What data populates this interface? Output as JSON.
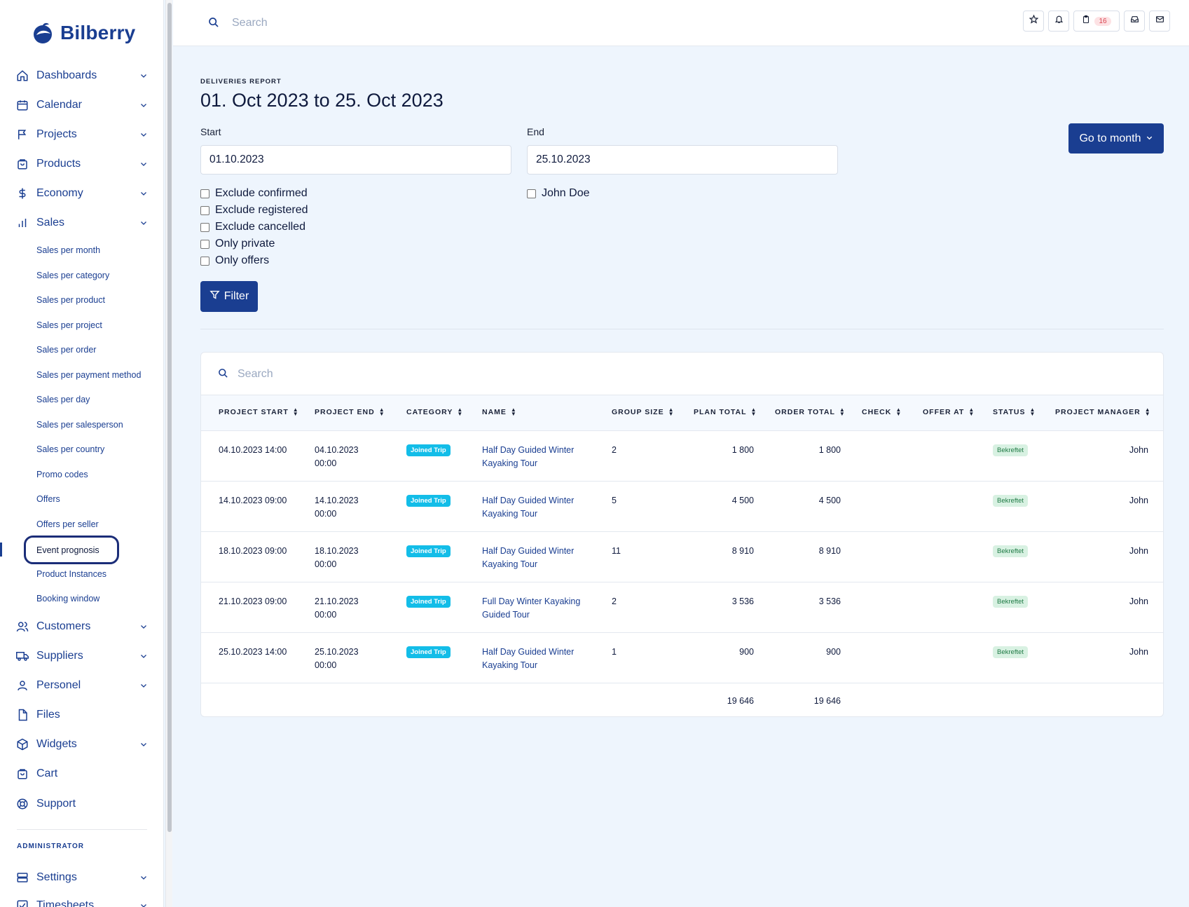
{
  "brand": {
    "name": "Bilberry"
  },
  "sidebar": {
    "items": [
      {
        "label": "Dashboards",
        "icon": "home-icon"
      },
      {
        "label": "Calendar",
        "icon": "calendar-icon"
      },
      {
        "label": "Projects",
        "icon": "flag-icon"
      },
      {
        "label": "Products",
        "icon": "bag-icon"
      },
      {
        "label": "Economy",
        "icon": "dollar-icon"
      },
      {
        "label": "Sales",
        "icon": "bar-chart-icon"
      }
    ],
    "sales_sub": [
      "Sales per month",
      "Sales per category",
      "Sales per product",
      "Sales per project",
      "Sales per order",
      "Sales per payment method",
      "Sales per day",
      "Sales per salesperson",
      "Sales per country",
      "Promo codes",
      "Offers",
      "Offers per seller",
      "Event prognosis",
      "Product Instances",
      "Booking window"
    ],
    "active_sub": "Event prognosis",
    "items_after": [
      {
        "label": "Customers",
        "icon": "users-icon",
        "chevron": true
      },
      {
        "label": "Suppliers",
        "icon": "truck-icon",
        "chevron": true
      },
      {
        "label": "Personel",
        "icon": "user-icon",
        "chevron": true
      },
      {
        "label": "Files",
        "icon": "file-icon",
        "chevron": false
      },
      {
        "label": "Widgets",
        "icon": "cube-icon",
        "chevron": true
      },
      {
        "label": "Cart",
        "icon": "cart-icon",
        "chevron": false
      },
      {
        "label": "Support",
        "icon": "lifebuoy-icon",
        "chevron": false
      }
    ],
    "admin_title": "ADMINISTRATOR",
    "admin_items": [
      {
        "label": "Settings",
        "icon": "server-icon"
      },
      {
        "label": "Timesheets",
        "icon": "check-square-icon"
      }
    ]
  },
  "topbar": {
    "search_placeholder": "Search",
    "cart_count": "16"
  },
  "report": {
    "kicker": "DELIVERIES REPORT",
    "title": "01. Oct 2023 to 25. Oct 2023",
    "start_label": "Start",
    "start_value": "01.10.2023",
    "end_label": "End",
    "end_value": "25.10.2023",
    "checkboxes": [
      "Exclude confirmed",
      "Exclude registered",
      "Exclude cancelled",
      "Only private",
      "Only offers"
    ],
    "person_checkbox": "John Doe",
    "filter_label": "Filter",
    "goto_label": "Go to month"
  },
  "table": {
    "search_placeholder": "Search",
    "columns": [
      "PROJECT START",
      "PROJECT END",
      "CATEGORY",
      "NAME",
      "GROUP SIZE",
      "PLAN TOTAL",
      "ORDER TOTAL",
      "CHECK",
      "OFFER AT",
      "STATUS",
      "PROJECT MANAGER"
    ],
    "rows": [
      {
        "start": "04.10.2023 14:00",
        "end_date": "04.10.2023",
        "end_time": "00:00",
        "category": "Joined Trip",
        "name_1": "Half Day Guided Winter",
        "name_2": "Kayaking Tour",
        "group": "2",
        "plan": "1 800",
        "order": "1 800",
        "status": "Bekreftet",
        "manager": "John"
      },
      {
        "start": "14.10.2023 09:00",
        "end_date": "14.10.2023",
        "end_time": "00:00",
        "category": "Joined Trip",
        "name_1": "Half Day Guided Winter",
        "name_2": "Kayaking Tour",
        "group": "5",
        "plan": "4 500",
        "order": "4 500",
        "status": "Bekreftet",
        "manager": "John"
      },
      {
        "start": "18.10.2023 09:00",
        "end_date": "18.10.2023",
        "end_time": "00:00",
        "category": "Joined Trip",
        "name_1": "Half Day Guided Winter",
        "name_2": "Kayaking Tour",
        "group": "11",
        "plan": "8 910",
        "order": "8 910",
        "status": "Bekreftet",
        "manager": "John"
      },
      {
        "start": "21.10.2023 09:00",
        "end_date": "21.10.2023",
        "end_time": "00:00",
        "category": "Joined Trip",
        "name_1": "Full Day Winter Kayaking",
        "name_2": "Guided Tour",
        "group": "2",
        "plan": "3 536",
        "order": "3 536",
        "status": "Bekreftet",
        "manager": "John"
      },
      {
        "start": "25.10.2023 14:00",
        "end_date": "25.10.2023",
        "end_time": "00:00",
        "category": "Joined Trip",
        "name_1": "Half Day Guided Winter",
        "name_2": "Kayaking Tour",
        "group": "1",
        "plan": "900",
        "order": "900",
        "status": "Bekreftet",
        "manager": "John"
      }
    ],
    "totals": {
      "plan": "19 646",
      "order": "19 646"
    }
  },
  "colors": {
    "primary": "#1a3e91",
    "category_tag": "#13bde8",
    "status_tag_bg": "#d8f1e2",
    "status_tag_text": "#1f7a45",
    "page_bg": "#eef5fd"
  }
}
